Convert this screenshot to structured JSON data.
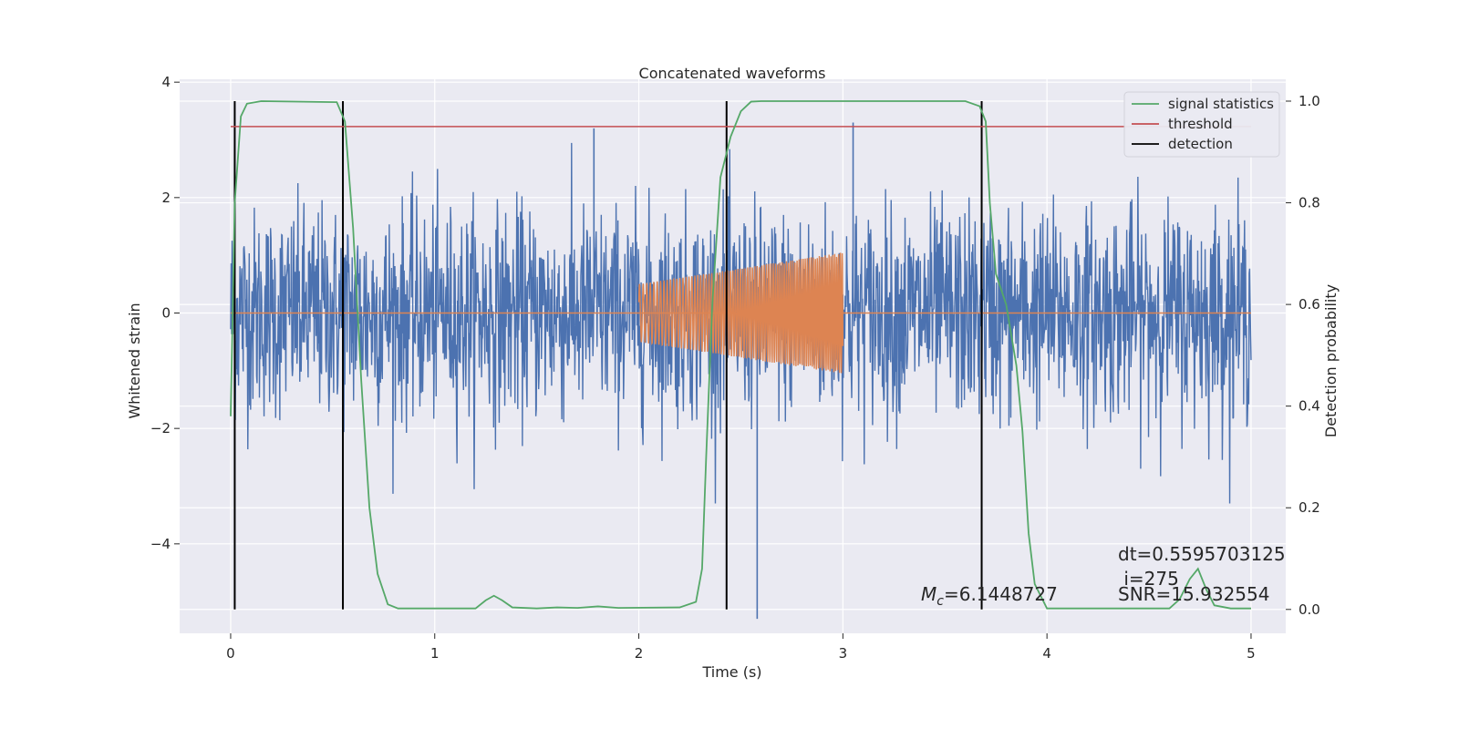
{
  "chart_data": {
    "type": "line",
    "title": "Concatenated waveforms",
    "xlabel": "Time (s)",
    "ylabel": "Whitened strain",
    "y2label": "Detection probability",
    "xlim": [
      -0.25,
      5.17
    ],
    "ylim": [
      -5.55,
      4.05
    ],
    "y2lim": [
      -0.047,
      1.043
    ],
    "x_ticks": [
      0,
      1,
      2,
      3,
      4,
      5
    ],
    "y_ticks": [
      -4,
      -2,
      0,
      2,
      4
    ],
    "y2_ticks": [
      "0.0",
      "0.2",
      "0.4",
      "0.6",
      "0.8",
      "1.0"
    ],
    "grid": true,
    "legend_position": "top-right",
    "series": [
      {
        "name": "",
        "role": "whitened strain noise",
        "color": "#4c72b0",
        "x_range": [
          0,
          5
        ],
        "amplitude_typical": 1.2,
        "extremes": [
          {
            "x": 1.78,
            "y": 3.2
          },
          {
            "x": 2.58,
            "y": -5.3
          },
          {
            "x": 3.05,
            "y": 3.3
          }
        ]
      },
      {
        "name": "",
        "role": "injected chirp",
        "color": "#dd8452",
        "x_start": 2.0,
        "x_end": 3.0,
        "amp_start": 0.5,
        "amp_end": 1.05
      },
      {
        "name": "signal statistics",
        "color": "#55a868",
        "axis": "y2",
        "points": [
          [
            0,
            0.38
          ],
          [
            0.02,
            0.8
          ],
          [
            0.05,
            0.97
          ],
          [
            0.08,
            0.995
          ],
          [
            0.15,
            1.0
          ],
          [
            0.52,
            0.998
          ],
          [
            0.56,
            0.96
          ],
          [
            0.6,
            0.75
          ],
          [
            0.64,
            0.45
          ],
          [
            0.68,
            0.2
          ],
          [
            0.72,
            0.07
          ],
          [
            0.77,
            0.01
          ],
          [
            0.82,
            0.002
          ],
          [
            1.2,
            0.002
          ],
          [
            1.25,
            0.018
          ],
          [
            1.29,
            0.027
          ],
          [
            1.33,
            0.018
          ],
          [
            1.38,
            0.004
          ],
          [
            1.5,
            0.002
          ],
          [
            1.6,
            0.004
          ],
          [
            1.7,
            0.003
          ],
          [
            1.8,
            0.006
          ],
          [
            1.9,
            0.003
          ],
          [
            2.2,
            0.004
          ],
          [
            2.28,
            0.015
          ],
          [
            2.31,
            0.08
          ],
          [
            2.33,
            0.3
          ],
          [
            2.36,
            0.6
          ],
          [
            2.4,
            0.85
          ],
          [
            2.45,
            0.93
          ],
          [
            2.5,
            0.98
          ],
          [
            2.55,
            0.999
          ],
          [
            2.6,
            1.0
          ],
          [
            3.6,
            1.0
          ],
          [
            3.67,
            0.99
          ],
          [
            3.7,
            0.96
          ],
          [
            3.72,
            0.8
          ],
          [
            3.75,
            0.66
          ],
          [
            3.8,
            0.6
          ],
          [
            3.85,
            0.48
          ],
          [
            3.88,
            0.35
          ],
          [
            3.91,
            0.15
          ],
          [
            3.94,
            0.05
          ],
          [
            4.0,
            0.002
          ],
          [
            4.6,
            0.002
          ],
          [
            4.65,
            0.02
          ],
          [
            4.7,
            0.06
          ],
          [
            4.74,
            0.08
          ],
          [
            4.78,
            0.04
          ],
          [
            4.82,
            0.008
          ],
          [
            4.9,
            0.002
          ],
          [
            5.0,
            0.002
          ]
        ]
      },
      {
        "name": "threshold",
        "color": "#c44e52",
        "axis": "y2",
        "value": 0.95,
        "x_range": [
          0,
          5
        ]
      },
      {
        "name": "detection",
        "color": "#000000",
        "axis": "y2",
        "x": [
          0.02,
          0.55,
          2.43,
          3.68
        ],
        "y_range": [
          0.0,
          1.0
        ]
      }
    ],
    "annotations": {
      "mc_symbol": "M",
      "mc_subscript": "c",
      "mc_value": "=6.1448727",
      "dt": "dt=0.5595703125",
      "i": " i=275",
      "snr": "SNR=15.932554"
    }
  }
}
